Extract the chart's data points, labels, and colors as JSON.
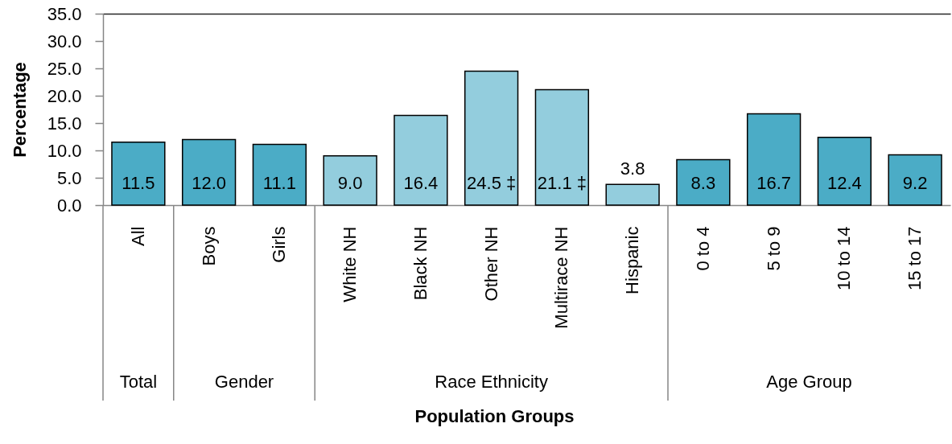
{
  "chart_data": {
    "type": "bar",
    "xlabel": "Population Groups",
    "ylabel": "Percentage",
    "categories": [
      "All",
      "Boys",
      "Girls",
      "White NH",
      "Black NH",
      "Other NH",
      "Multirace NH",
      "Hispanic",
      "0 to 4",
      "5 to 9",
      "10 to 14",
      "15 to 17"
    ],
    "values": [
      11.5,
      12.0,
      11.1,
      9.0,
      16.4,
      24.5,
      21.1,
      3.8,
      8.3,
      16.7,
      12.4,
      9.2
    ],
    "colors": [
      "#4bacc6",
      "#4bacc6",
      "#4bacc6",
      "#93cddd",
      "#93cddd",
      "#93cddd",
      "#93cddd",
      "#93cddd",
      "#4bacc6",
      "#4bacc6",
      "#4bacc6",
      "#4bacc6"
    ],
    "value_labels": [
      "11.5",
      "12.0",
      "11.1",
      "9.0",
      "16.4",
      "24.5 ‡",
      "21.1 ‡",
      "3.8",
      "8.3",
      "16.7",
      "12.4",
      "9.2"
    ],
    "ylim": [
      0,
      35
    ],
    "yticks": [
      {
        "value": 0,
        "label": "0.0"
      },
      {
        "value": 5,
        "label": "5.0"
      },
      {
        "value": 10,
        "label": "10.0"
      },
      {
        "value": 15,
        "label": "15.0"
      },
      {
        "value": 20,
        "label": "20.0"
      },
      {
        "value": 25,
        "label": "25.0"
      },
      {
        "value": 30,
        "label": "30.0"
      },
      {
        "value": 35,
        "label": "35.0"
      }
    ],
    "annotations": [
      "Total",
      "Gender",
      "Race Ethnicity",
      "Age Group"
    ]
  }
}
